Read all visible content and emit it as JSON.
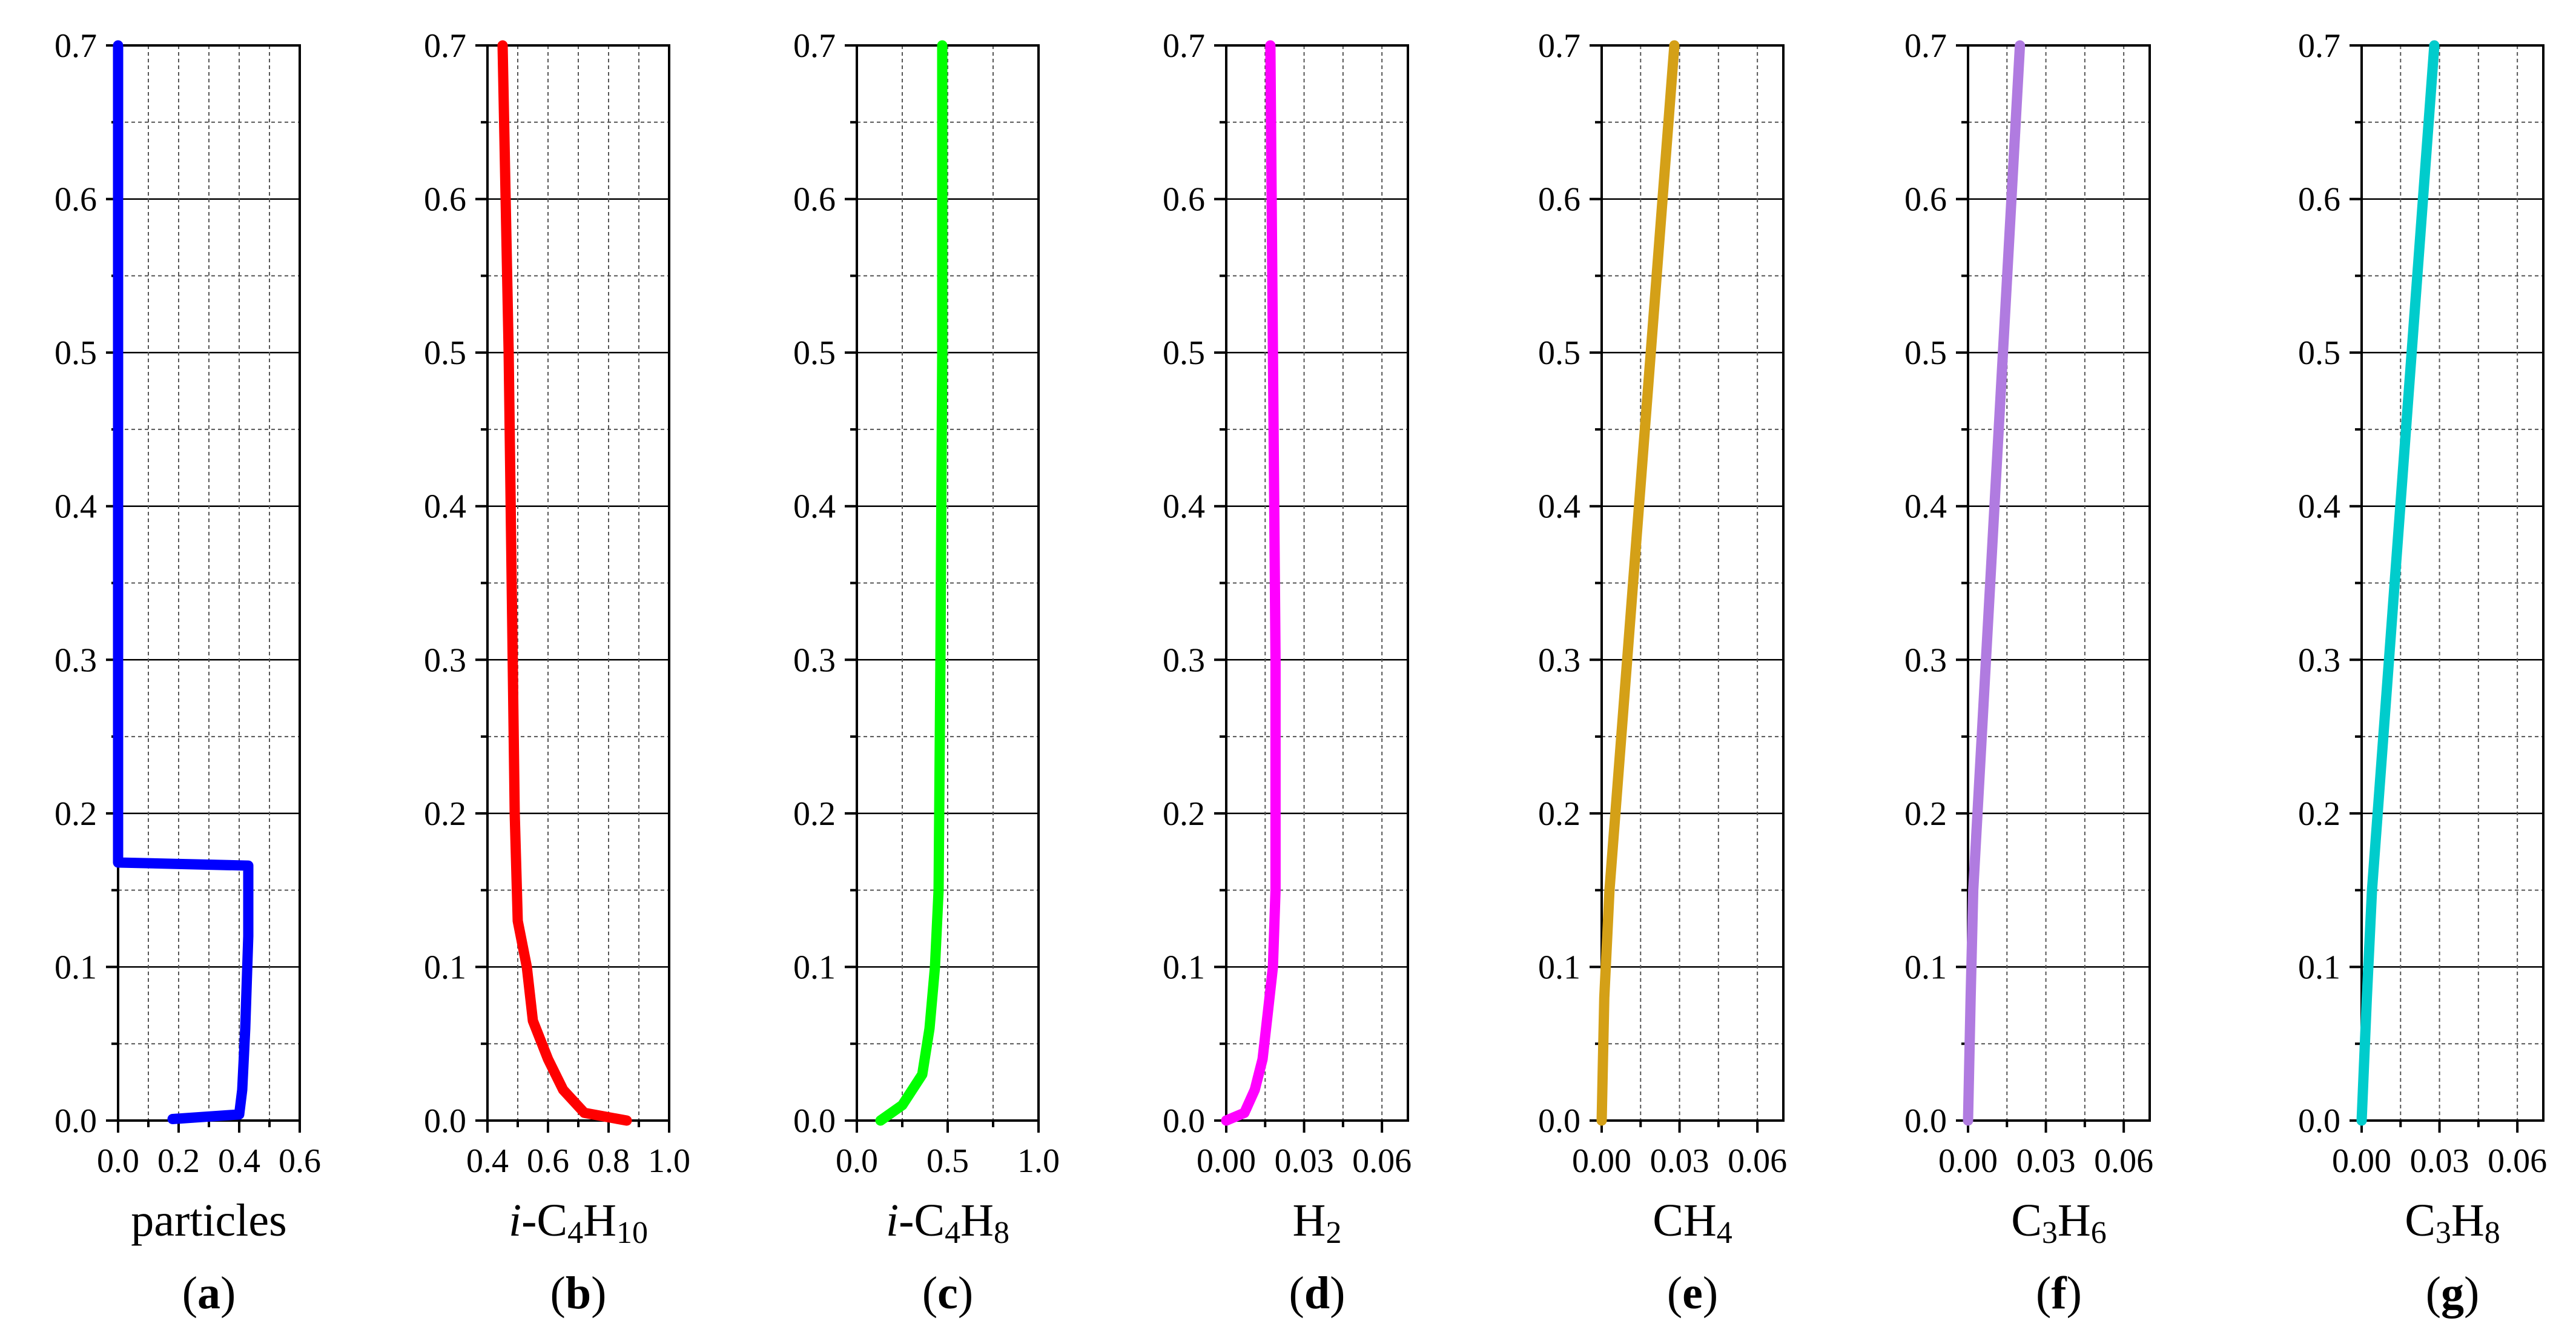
{
  "chart_data": [
    {
      "type": "line",
      "panel": "(a)",
      "panel_letter": "a",
      "xlabel_parts": [
        {
          "text": "particles"
        }
      ],
      "xlim": [
        0.0,
        0.6
      ],
      "ylim": [
        0.0,
        0.7
      ],
      "xticks": [
        0.0,
        0.2,
        0.4,
        0.6
      ],
      "xtick_labels": [
        "0.0",
        "0.2",
        "0.4",
        "0.6"
      ],
      "yticks": [
        0.0,
        0.1,
        0.2,
        0.3,
        0.4,
        0.5,
        0.6,
        0.7
      ],
      "ytick_labels": [
        "0.0",
        "0.1",
        "0.2",
        "0.3",
        "0.4",
        "0.5",
        "0.6",
        "0.7"
      ],
      "grid": true,
      "series": [
        {
          "name": "particles",
          "color": "#0000ff",
          "x": [
            0.0,
            0.0,
            0.0,
            0.43,
            0.43,
            0.42,
            0.41,
            0.4,
            0.18
          ],
          "y": [
            0.7,
            0.2,
            0.168,
            0.166,
            0.12,
            0.06,
            0.02,
            0.004,
            0.001
          ]
        }
      ]
    },
    {
      "type": "line",
      "panel": "(b)",
      "panel_letter": "b",
      "xlabel_parts": [
        {
          "text": "i",
          "italic": true
        },
        {
          "text": "-C"
        },
        {
          "text": "4",
          "sub": true
        },
        {
          "text": "H"
        },
        {
          "text": "10",
          "sub": true
        }
      ],
      "xlim": [
        0.4,
        1.0
      ],
      "ylim": [
        0.0,
        0.7
      ],
      "xticks": [
        0.4,
        0.6,
        0.8,
        1.0
      ],
      "xtick_labels": [
        "0.4",
        "0.6",
        "0.8",
        "1.0"
      ],
      "yticks": [
        0.0,
        0.1,
        0.2,
        0.3,
        0.4,
        0.5,
        0.6,
        0.7
      ],
      "ytick_labels": [
        "0.0",
        "0.1",
        "0.2",
        "0.3",
        "0.4",
        "0.5",
        "0.6",
        "0.7"
      ],
      "grid": true,
      "series": [
        {
          "name": "i-C4H10",
          "color": "#ff0000",
          "x": [
            0.45,
            0.47,
            0.48,
            0.49,
            0.5,
            0.53,
            0.55,
            0.6,
            0.65,
            0.72,
            0.86
          ],
          "y": [
            0.7,
            0.5,
            0.35,
            0.2,
            0.13,
            0.1,
            0.065,
            0.04,
            0.02,
            0.005,
            0.0
          ]
        }
      ]
    },
    {
      "type": "line",
      "panel": "(c)",
      "panel_letter": "c",
      "xlabel_parts": [
        {
          "text": "i",
          "italic": true
        },
        {
          "text": "-C"
        },
        {
          "text": "4",
          "sub": true
        },
        {
          "text": "H"
        },
        {
          "text": "8",
          "sub": true
        }
      ],
      "xlim": [
        0.0,
        1.0
      ],
      "ylim": [
        0.0,
        0.7
      ],
      "xticks": [
        0.0,
        0.5,
        1.0
      ],
      "xtick_labels": [
        "0.0",
        "0.5",
        "1.0"
      ],
      "yticks": [
        0.0,
        0.1,
        0.2,
        0.3,
        0.4,
        0.5,
        0.6,
        0.7
      ],
      "ytick_labels": [
        "0.0",
        "0.1",
        "0.2",
        "0.3",
        "0.4",
        "0.5",
        "0.6",
        "0.7"
      ],
      "grid": true,
      "series": [
        {
          "name": "i-C4H8",
          "color": "#00ff00",
          "x": [
            0.47,
            0.47,
            0.46,
            0.45,
            0.43,
            0.4,
            0.36,
            0.25,
            0.13
          ],
          "y": [
            0.7,
            0.5,
            0.3,
            0.15,
            0.1,
            0.06,
            0.03,
            0.01,
            0.0
          ]
        }
      ]
    },
    {
      "type": "line",
      "panel": "(d)",
      "panel_letter": "d",
      "xlabel_parts": [
        {
          "text": "H"
        },
        {
          "text": "2",
          "sub": true
        }
      ],
      "xlim": [
        0.0,
        0.07
      ],
      "ylim": [
        0.0,
        0.7
      ],
      "xticks": [
        0.0,
        0.03,
        0.06
      ],
      "xtick_labels": [
        "0.00",
        "0.03",
        "0.06"
      ],
      "yticks": [
        0.0,
        0.1,
        0.2,
        0.3,
        0.4,
        0.5,
        0.6,
        0.7
      ],
      "ytick_labels": [
        "0.0",
        "0.1",
        "0.2",
        "0.3",
        "0.4",
        "0.5",
        "0.6",
        "0.7"
      ],
      "grid": true,
      "series": [
        {
          "name": "H2",
          "color": "#ff00ff",
          "x": [
            0.017,
            0.018,
            0.019,
            0.019,
            0.018,
            0.016,
            0.014,
            0.011,
            0.007,
            0.0
          ],
          "y": [
            0.7,
            0.5,
            0.3,
            0.15,
            0.1,
            0.07,
            0.04,
            0.02,
            0.005,
            0.0
          ]
        }
      ]
    },
    {
      "type": "line",
      "panel": "(e)",
      "panel_letter": "e",
      "xlabel_parts": [
        {
          "text": "CH"
        },
        {
          "text": "4",
          "sub": true
        }
      ],
      "xlim": [
        0.0,
        0.07
      ],
      "ylim": [
        0.0,
        0.7
      ],
      "xticks": [
        0.0,
        0.03,
        0.06
      ],
      "xtick_labels": [
        "0.00",
        "0.03",
        "0.06"
      ],
      "yticks": [
        0.0,
        0.1,
        0.2,
        0.3,
        0.4,
        0.5,
        0.6,
        0.7
      ],
      "ytick_labels": [
        "0.0",
        "0.1",
        "0.2",
        "0.3",
        "0.4",
        "0.5",
        "0.6",
        "0.7"
      ],
      "grid": true,
      "series": [
        {
          "name": "CH4",
          "color": "#d4a017",
          "x": [
            0.0,
            0.001,
            0.003,
            0.028
          ],
          "y": [
            0.0,
            0.08,
            0.15,
            0.7
          ]
        }
      ]
    },
    {
      "type": "line",
      "panel": "(f)",
      "panel_letter": "f",
      "xlabel_parts": [
        {
          "text": "C"
        },
        {
          "text": "3",
          "sub": true
        },
        {
          "text": "H"
        },
        {
          "text": "6",
          "sub": true
        }
      ],
      "xlim": [
        0.0,
        0.07
      ],
      "ylim": [
        0.0,
        0.7
      ],
      "xticks": [
        0.0,
        0.03,
        0.06
      ],
      "xtick_labels": [
        "0.00",
        "0.03",
        "0.06"
      ],
      "yticks": [
        0.0,
        0.1,
        0.2,
        0.3,
        0.4,
        0.5,
        0.6,
        0.7
      ],
      "ytick_labels": [
        "0.0",
        "0.1",
        "0.2",
        "0.3",
        "0.4",
        "0.5",
        "0.6",
        "0.7"
      ],
      "grid": true,
      "series": [
        {
          "name": "C3H6",
          "color": "#b07be0",
          "x": [
            0.0,
            0.001,
            0.002,
            0.02
          ],
          "y": [
            0.0,
            0.08,
            0.15,
            0.7
          ]
        }
      ]
    },
    {
      "type": "line",
      "panel": "(g)",
      "panel_letter": "g",
      "xlabel_parts": [
        {
          "text": "C"
        },
        {
          "text": "3",
          "sub": true
        },
        {
          "text": "H"
        },
        {
          "text": "8",
          "sub": true
        }
      ],
      "xlim": [
        0.0,
        0.07
      ],
      "ylim": [
        0.0,
        0.7
      ],
      "xticks": [
        0.0,
        0.03,
        0.06
      ],
      "xtick_labels": [
        "0.00",
        "0.03",
        "0.06"
      ],
      "yticks": [
        0.0,
        0.1,
        0.2,
        0.3,
        0.4,
        0.5,
        0.6,
        0.7
      ],
      "ytick_labels": [
        "0.0",
        "0.1",
        "0.2",
        "0.3",
        "0.4",
        "0.5",
        "0.6",
        "0.7"
      ],
      "grid": true,
      "series": [
        {
          "name": "C3H8",
          "color": "#00cccc",
          "x": [
            0.0,
            0.002,
            0.004,
            0.028
          ],
          "y": [
            0.0,
            0.08,
            0.15,
            0.7
          ]
        }
      ]
    }
  ]
}
